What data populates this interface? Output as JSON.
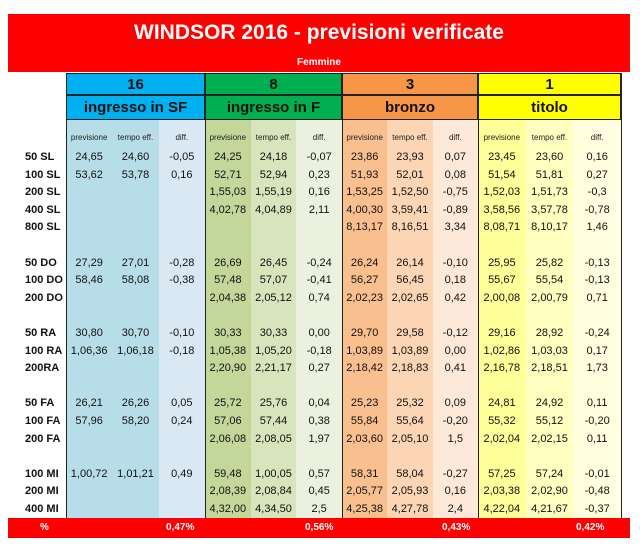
{
  "title": "WINDSOR 2016 - previsioni verificate",
  "subtitle": "Femmine",
  "groups": [
    {
      "number": "16",
      "label": "ingresso in SF",
      "num_color": "#00b0f0",
      "label_color": "#00b0f0",
      "col_colors": [
        "#b7dee8",
        "#b7dee8",
        "#dae8f3"
      ]
    },
    {
      "number": "8",
      "label": "ingresso in F",
      "num_color": "#00b050",
      "label_color": "#00b050",
      "col_colors": [
        "#c4d79b",
        "#d8e4bc",
        "#ebf1de"
      ]
    },
    {
      "number": "3",
      "label": "bronzo",
      "num_color": "#f79646",
      "label_color": "#f79646",
      "col_colors": [
        "#fabf8f",
        "#fcd5b4",
        "#fde9d9"
      ]
    },
    {
      "number": "1",
      "label": "titolo",
      "num_color": "#ffff00",
      "label_color": "#ffff00",
      "col_colors": [
        "#ffff99",
        "#ffffc0",
        "#ffffe0"
      ]
    }
  ],
  "col_headers": [
    "previsione",
    "tempo eff.",
    "diff."
  ],
  "rows": [
    {
      "label": "50 SL",
      "cells": [
        [
          "24,65",
          "24,60",
          "-0,05"
        ],
        [
          "24,25",
          "24,18",
          "-0,07"
        ],
        [
          "23,86",
          "23,93",
          "0,07"
        ],
        [
          "23,45",
          "23,60",
          "0,16"
        ]
      ]
    },
    {
      "label": "100 SL",
      "cells": [
        [
          "53,62",
          "53,78",
          "0,16"
        ],
        [
          "52,71",
          "52,94",
          "0,23"
        ],
        [
          "51,93",
          "52,01",
          "0,08"
        ],
        [
          "51,54",
          "51,81",
          "0,27"
        ]
      ]
    },
    {
      "label": "200 SL",
      "cells": [
        [
          "",
          "",
          ""
        ],
        [
          "1,55,03",
          "1,55,19",
          "0,16"
        ],
        [
          "1,53,25",
          "1,52,50",
          "-0,75"
        ],
        [
          "1,52,03",
          "1,51,73",
          "-0,3"
        ]
      ]
    },
    {
      "label": "400 SL",
      "cells": [
        [
          "",
          "",
          ""
        ],
        [
          "4,02,78",
          "4,04,89",
          "2,11"
        ],
        [
          "4,00,30",
          "3,59,41",
          "-0,89"
        ],
        [
          "3,58,56",
          "3,57,78",
          "-0,78"
        ]
      ]
    },
    {
      "label": "800 SL",
      "cells": [
        [
          "",
          "",
          ""
        ],
        [
          "",
          "",
          ""
        ],
        [
          "8,13,17",
          "8,16,51",
          "3,34"
        ],
        [
          "8,08,71",
          "8,10,17",
          "1,46"
        ]
      ]
    },
    {
      "label": "",
      "cells": []
    },
    {
      "label": "50 DO",
      "cells": [
        [
          "27,29",
          "27,01",
          "-0,28"
        ],
        [
          "26,69",
          "26,45",
          "-0,24"
        ],
        [
          "26,24",
          "26,14",
          "-0,10"
        ],
        [
          "25,95",
          "25,82",
          "-0,13"
        ]
      ]
    },
    {
      "label": "100 DO",
      "cells": [
        [
          "58,46",
          "58,08",
          "-0,38"
        ],
        [
          "57,48",
          "57,07",
          "-0,41"
        ],
        [
          "56,27",
          "56,45",
          "0,18"
        ],
        [
          "55,67",
          "55,54",
          "-0,13"
        ]
      ]
    },
    {
      "label": "200 DO",
      "cells": [
        [
          "",
          "",
          ""
        ],
        [
          "2,04,38",
          "2,05,12",
          "0,74"
        ],
        [
          "2,02,23",
          "2,02,65",
          "0,42"
        ],
        [
          "2,00,08",
          "2,00,79",
          "0,71"
        ]
      ]
    },
    {
      "label": "",
      "cells": []
    },
    {
      "label": "50 RA",
      "cells": [
        [
          "30,80",
          "30,70",
          "-0,10"
        ],
        [
          "30,33",
          "30,33",
          "0,00"
        ],
        [
          "29,70",
          "29,58",
          "-0,12"
        ],
        [
          "29,16",
          "28,92",
          "-0,24"
        ]
      ]
    },
    {
      "label": "100 RA",
      "cells": [
        [
          "1,06,36",
          "1,06,18",
          "-0,18"
        ],
        [
          "1,05,38",
          "1,05,20",
          "-0,18"
        ],
        [
          "1,03,89",
          "1,03,89",
          "0,00"
        ],
        [
          "1,02,86",
          "1,03,03",
          "0,17"
        ]
      ]
    },
    {
      "label": "200RA",
      "cells": [
        [
          "",
          "",
          ""
        ],
        [
          "2,20,90",
          "2,21,17",
          "0,27"
        ],
        [
          "2,18,42",
          "2,18,83",
          "0,41"
        ],
        [
          "2,16,78",
          "2,18,51",
          "1,73"
        ]
      ]
    },
    {
      "label": "",
      "cells": []
    },
    {
      "label": "50 FA",
      "cells": [
        [
          "26,21",
          "26,26",
          "0,05"
        ],
        [
          "25,72",
          "25,76",
          "0,04"
        ],
        [
          "25,23",
          "25,32",
          "0,09"
        ],
        [
          "24,81",
          "24,92",
          "0,11"
        ]
      ]
    },
    {
      "label": "100 FA",
      "cells": [
        [
          "57,96",
          "58,20",
          "0,24"
        ],
        [
          "57,06",
          "57,44",
          "0,38"
        ],
        [
          "55,84",
          "55,64",
          "-0,20"
        ],
        [
          "55,32",
          "55,12",
          "-0,20"
        ]
      ]
    },
    {
      "label": "200 FA",
      "cells": [
        [
          "",
          "",
          ""
        ],
        [
          "2,06,08",
          "2,08,05",
          "1,97"
        ],
        [
          "2,03,60",
          "2,05,10",
          "1,5"
        ],
        [
          "2,02,04",
          "2,02,15",
          "0,11"
        ]
      ]
    },
    {
      "label": "",
      "cells": []
    },
    {
      "label": "100 MI",
      "cells": [
        [
          "1,00,72",
          "1,01,21",
          "0,49"
        ],
        [
          "59,48",
          "1,00,05",
          "0,57"
        ],
        [
          "58,31",
          "58,04",
          "-0,27"
        ],
        [
          "57,25",
          "57,24",
          "-0,01"
        ]
      ]
    },
    {
      "label": "200 MI",
      "cells": [
        [
          "",
          "",
          ""
        ],
        [
          "2,08,39",
          "2,08,84",
          "0,45"
        ],
        [
          "2,05,77",
          "2,05,93",
          "0,16"
        ],
        [
          "2,03,38",
          "2,02,90",
          "-0,48"
        ]
      ]
    },
    {
      "label": "400 MI",
      "cells": [
        [
          "",
          "",
          ""
        ],
        [
          "4,32,00",
          "4,34,50",
          "2,5"
        ],
        [
          "4,25,38",
          "4,27,78",
          "2,4"
        ],
        [
          "4,22,04",
          "4,21,67",
          "-0,37"
        ]
      ]
    }
  ],
  "footer": {
    "label": "%",
    "values": [
      "0,47%",
      "0,56%",
      "0,43%",
      "0,42%"
    ]
  }
}
